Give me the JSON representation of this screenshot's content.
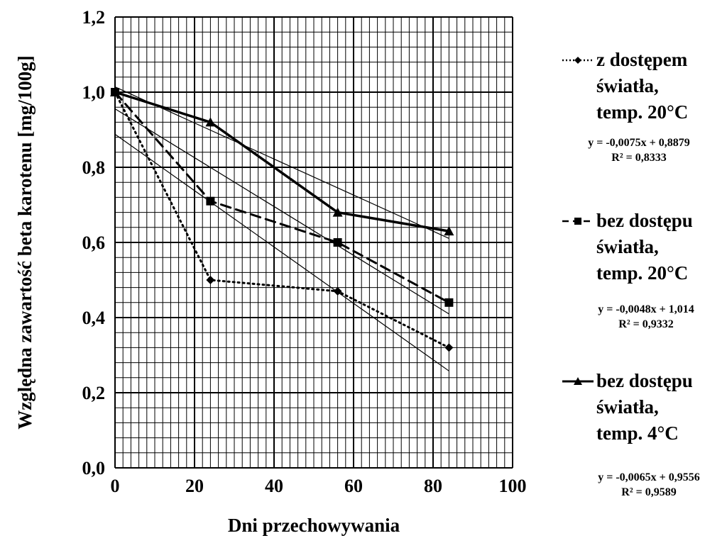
{
  "chart_data": {
    "type": "line",
    "xlabel": "Dni przechowywania",
    "ylabel": "Względna zawartość beta karotenu [mg/100g]",
    "xlim": [
      0,
      100
    ],
    "ylim": [
      0,
      1.2
    ],
    "x_ticks": [
      "0",
      "20",
      "40",
      "60",
      "80",
      "100"
    ],
    "y_ticks": [
      "0,0",
      "0,2",
      "0,4",
      "0,6",
      "0,8",
      "1,0",
      "1,2"
    ],
    "grid": true,
    "legend_position": "right",
    "series": [
      {
        "name": "z dostępem światła, temp. 20°C",
        "name_lines": [
          "z dostępem",
          "światła,",
          "temp. 20°C"
        ],
        "marker": "diamond",
        "line_style": "dotted",
        "x": [
          0,
          24,
          56,
          84
        ],
        "y": [
          1.0,
          0.5,
          0.47,
          0.32
        ],
        "trendline": {
          "slope": -0.0075,
          "intercept": 0.8879,
          "equation": "y = -0,0075x + 0,8879",
          "r2": "R² = 0,8333"
        }
      },
      {
        "name": "bez dostępu światła, temp. 20°C",
        "name_lines": [
          "bez dostępu",
          "światła,",
          "temp. 20°C"
        ],
        "marker": "square",
        "line_style": "dashed",
        "x": [
          0,
          24,
          56,
          84
        ],
        "y": [
          1.0,
          0.71,
          0.6,
          0.44
        ],
        "trendline": {
          "slope": -0.0065,
          "intercept": 0.9556,
          "equation": "y = -0,0065x + 0,9556",
          "r2": "R² = 0,9589"
        }
      },
      {
        "name": "bez dostępu światła, temp. 4°C",
        "name_lines": [
          "bez dostępu",
          "światła,",
          "temp. 4°C"
        ],
        "marker": "triangle",
        "line_style": "solid",
        "x": [
          0,
          24,
          56,
          84
        ],
        "y": [
          1.0,
          0.92,
          0.68,
          0.63
        ],
        "trendline": {
          "slope": -0.0048,
          "intercept": 1.014,
          "equation": "y = -0,0048x + 1,014",
          "r2": "R² = 0,9332"
        }
      }
    ]
  },
  "legend_equations": [
    {
      "equation": "y = -0,0075x + 0,8879",
      "r2": "R² = 0,8333"
    },
    {
      "equation": "y = -0,0048x + 1,014",
      "r2": "R² = 0,9332"
    },
    {
      "equation": "y = -0,0065x + 0,9556",
      "r2": "R² = 0,9589"
    }
  ]
}
